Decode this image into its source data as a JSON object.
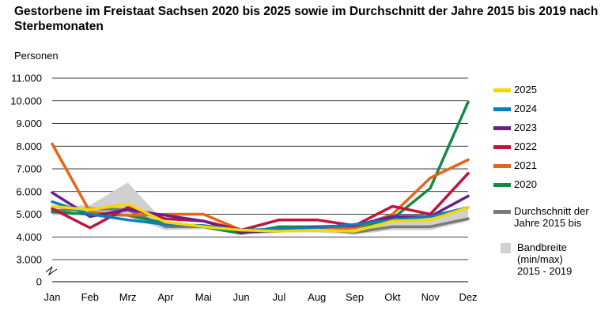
{
  "chart_data": {
    "type": "line",
    "title": "Gestorbene im Freistaat Sachsen 2020 bis 2025 sowie im Durchschnitt der Jahre 2015 bis 2019 nach Sterbemonaten",
    "ylabel": "Personen",
    "categories": [
      "Jan",
      "Feb",
      "Mrz",
      "Apr",
      "Mai",
      "Jun",
      "Jul",
      "Aug",
      "Sep",
      "Okt",
      "Nov",
      "Dez"
    ],
    "yticks": [
      "0",
      "3.000",
      "4.000",
      "5.000",
      "6.000",
      "7.000",
      "8.000",
      "9.000",
      "10.000",
      "11.000"
    ],
    "ylim": [
      0,
      11000
    ],
    "axis_break": "0-3000",
    "grid": true,
    "legend_position": "right",
    "band": {
      "name": "Bandbreite (min/max) 2015 - 2019",
      "color": "#d0d0d0",
      "min": [
        4950,
        5050,
        4900,
        4300,
        4350,
        4100,
        4200,
        4200,
        4100,
        4300,
        4300,
        4700
      ],
      "max": [
        5350,
        5400,
        6400,
        4600,
        4550,
        4350,
        4350,
        4450,
        4300,
        4650,
        4700,
        5300
      ]
    },
    "series": [
      {
        "name": "Durchschnitt der Jahre 2015 bis",
        "color": "#7a7a7a",
        "values": [
          5150,
          5250,
          5200,
          4450,
          4450,
          4200,
          4250,
          4350,
          4200,
          4450,
          4450,
          4800
        ]
      },
      {
        "name": "2020",
        "color": "#168a45",
        "values": [
          5100,
          5000,
          4950,
          4600,
          4450,
          4150,
          4450,
          4450,
          4400,
          4800,
          6150,
          9950
        ]
      },
      {
        "name": "2021",
        "color": "#e8641a",
        "values": [
          8100,
          5100,
          4950,
          5000,
          5000,
          4300,
          4300,
          4300,
          4400,
          5000,
          6600,
          7400
        ]
      },
      {
        "name": "2022",
        "color": "#c0143c",
        "values": [
          5250,
          4400,
          5300,
          4800,
          4700,
          4300,
          4750,
          4750,
          4500,
          5350,
          5000,
          6800
        ]
      },
      {
        "name": "2023",
        "color": "#6a1f8a",
        "values": [
          5950,
          4900,
          5200,
          4950,
          4700,
          4200,
          4300,
          4450,
          4500,
          4900,
          4900,
          5800
        ]
      },
      {
        "name": "2024",
        "color": "#0a7fc0",
        "values": [
          5550,
          5000,
          4750,
          4550,
          4500,
          4300,
          4350,
          4400,
          4550,
          4750,
          4900,
          5300
        ]
      },
      {
        "name": "2025",
        "color": "#f5d800",
        "values": [
          5350,
          5200,
          5450,
          4650,
          4450,
          4300,
          4250,
          4300,
          4250,
          4700,
          4750,
          5300
        ]
      }
    ],
    "legend": [
      {
        "label": "2025",
        "color": "#f5d800",
        "kind": "line"
      },
      {
        "label": "2024",
        "color": "#0a7fc0",
        "kind": "line"
      },
      {
        "label": "2023",
        "color": "#6a1f8a",
        "kind": "line"
      },
      {
        "label": "2022",
        "color": "#c0143c",
        "kind": "line"
      },
      {
        "label": "2021",
        "color": "#e8641a",
        "kind": "line"
      },
      {
        "label": "2020",
        "color": "#168a45",
        "kind": "line"
      },
      {
        "label": "Durchschnitt der\nJahre 2015 bis",
        "color": "#7a7a7a",
        "kind": "line"
      },
      {
        "label": "Bandbreite\n(min/max)\n2015 - 2019",
        "color": "#d0d0d0",
        "kind": "box"
      }
    ]
  }
}
